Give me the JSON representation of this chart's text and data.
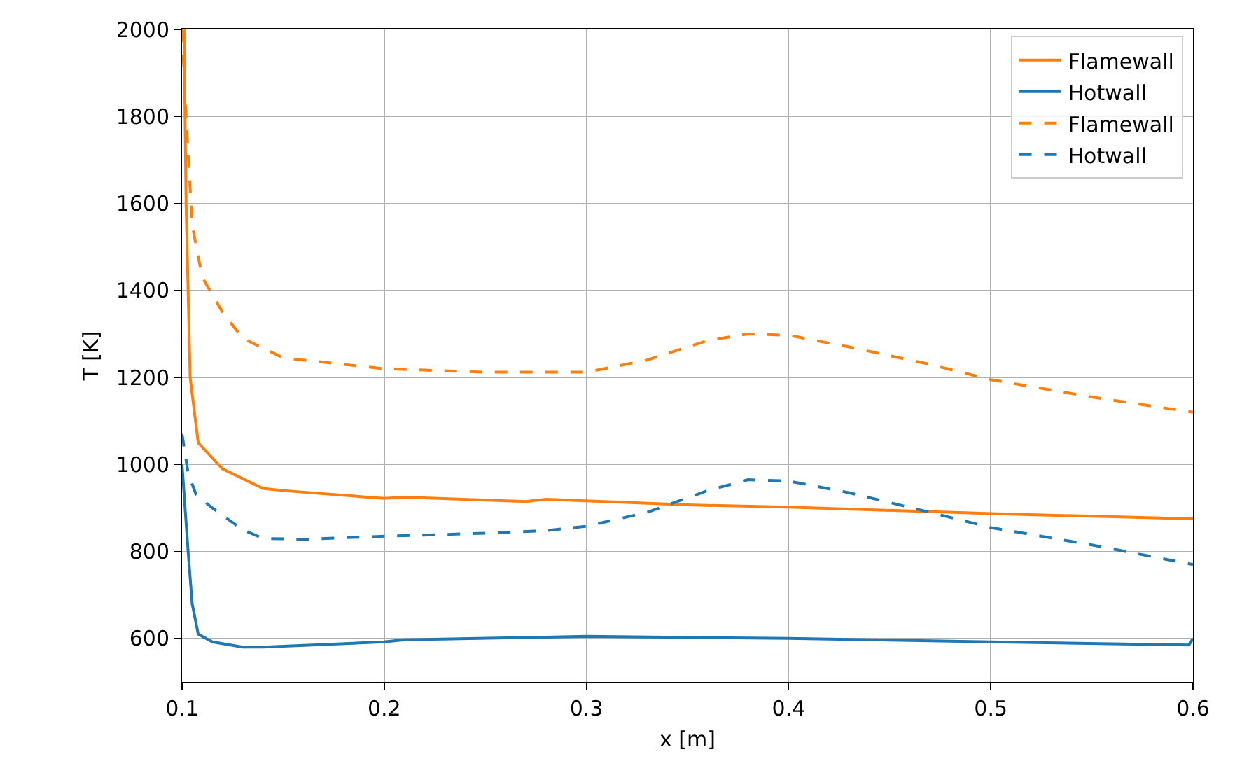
{
  "chart_data": {
    "type": "line",
    "xlabel": "x [m]",
    "ylabel": "T [K]",
    "xlim": [
      0.1,
      0.6
    ],
    "xticks": [
      {
        "value": 0.1,
        "label": "0.1"
      },
      {
        "value": 0.2,
        "label": "0.2"
      },
      {
        "value": 0.3,
        "label": "0.3"
      },
      {
        "value": 0.4,
        "label": "0.4"
      },
      {
        "value": 0.5,
        "label": "0.5"
      },
      {
        "value": 0.6,
        "label": "0.6"
      }
    ],
    "ylim": [
      500,
      2000
    ],
    "yticks": [
      600,
      800,
      1000,
      1200,
      1400,
      1600,
      1800,
      2000
    ],
    "grid": true,
    "legend": "top right",
    "marker": "none",
    "series": [
      {
        "name": "Flamewall",
        "color": "#ff7f0e",
        "line_style": "solid",
        "x": [
          0.101,
          0.102,
          0.104,
          0.108,
          0.12,
          0.14,
          0.15,
          0.2,
          0.21,
          0.27,
          0.28,
          0.35,
          0.4,
          0.5,
          0.6
        ],
        "values": [
          2000,
          1600,
          1200,
          1050,
          990,
          945,
          940,
          922,
          925,
          915,
          920,
          907,
          902,
          887,
          875
        ]
      },
      {
        "name": "Hotwall",
        "color": "#1f77b4",
        "line_style": "solid",
        "x": [
          0.1,
          0.103,
          0.105,
          0.108,
          0.115,
          0.13,
          0.14,
          0.2,
          0.21,
          0.28,
          0.3,
          0.4,
          0.5,
          0.598,
          0.6
        ],
        "values": [
          1000,
          800,
          680,
          610,
          592,
          580,
          580,
          592,
          597,
          603,
          605,
          600,
          592,
          585,
          600
        ]
      },
      {
        "name": "Flamewall",
        "color": "#ff7f0e",
        "line_style": "dashed",
        "x": [
          0.1,
          0.102,
          0.105,
          0.11,
          0.12,
          0.13,
          0.15,
          0.2,
          0.25,
          0.3,
          0.33,
          0.36,
          0.38,
          0.4,
          0.43,
          0.47,
          0.5,
          0.55,
          0.6
        ],
        "values": [
          2000,
          1800,
          1550,
          1430,
          1350,
          1290,
          1245,
          1220,
          1212,
          1212,
          1240,
          1285,
          1300,
          1297,
          1270,
          1230,
          1195,
          1155,
          1120
        ]
      },
      {
        "name": "Hotwall",
        "color": "#1f77b4",
        "line_style": "dashed",
        "x": [
          0.1,
          0.103,
          0.107,
          0.115,
          0.13,
          0.14,
          0.16,
          0.2,
          0.25,
          0.28,
          0.3,
          0.33,
          0.36,
          0.38,
          0.4,
          0.43,
          0.47,
          0.5,
          0.55,
          0.6
        ],
        "values": [
          1070,
          980,
          930,
          900,
          850,
          830,
          828,
          835,
          842,
          848,
          858,
          890,
          940,
          965,
          962,
          935,
          890,
          855,
          815,
          770
        ]
      }
    ]
  }
}
